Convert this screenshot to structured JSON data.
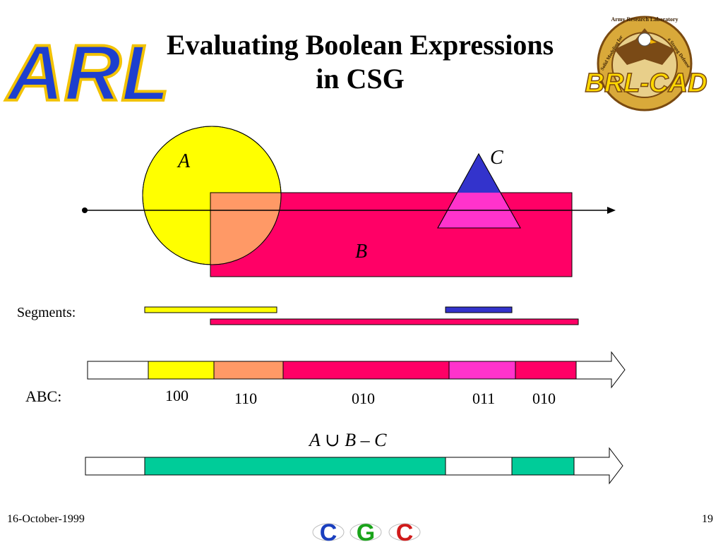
{
  "slide": {
    "title_line1": "Evaluating Boolean Expressions",
    "title_line2": "in CSG",
    "footer_date": "16-October-1999",
    "page_number": "19"
  },
  "logos": {
    "left": {
      "text": "ARL"
    },
    "right": {
      "ring_text_top": "Army Research Laboratory",
      "ring_text_left": "Solid Modeling for",
      "ring_text_right": "a Strong Defense",
      "banner": "BRL-CAD"
    },
    "bottom": {
      "letters": [
        "C",
        "G",
        "C"
      ],
      "colors": [
        "#1a3fbf",
        "#1aa31a",
        "#d01a1a"
      ]
    }
  },
  "diagram": {
    "label_a": "A",
    "label_b": "B",
    "label_c": "C",
    "segments_label": "Segments:",
    "abc_label": "ABC:",
    "expression": "A ∪ B – C",
    "abc_codes": [
      "100",
      "110",
      "010",
      "011",
      "010"
    ],
    "colors": {
      "a": "#ffff00",
      "b": "#ff0066",
      "a_and_b": "#ff9966",
      "c_top": "#3333cc",
      "c_and_b": "#ff33cc",
      "result": "#00cc99"
    }
  }
}
